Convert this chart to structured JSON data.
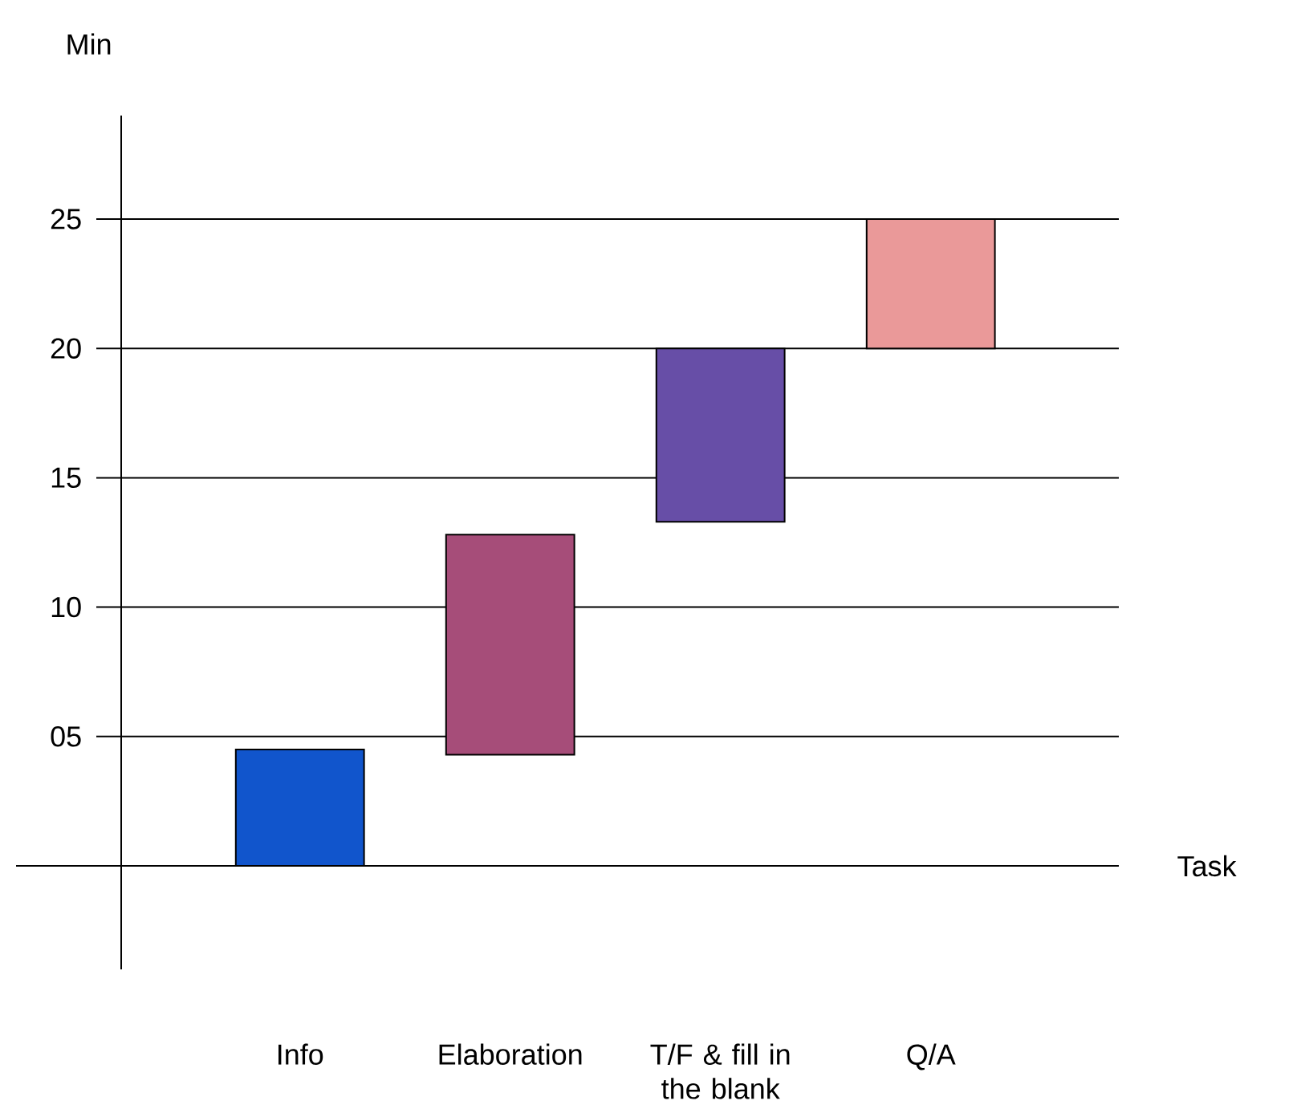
{
  "chart_data": {
    "type": "bar",
    "xlabel": "Task",
    "ylabel": "Min",
    "categories": [
      "Info",
      "Elaboration",
      "T/F & fill in the blank",
      "Q/A"
    ],
    "base": [
      0,
      4.3,
      13.3,
      20
    ],
    "values": [
      4.5,
      8.5,
      6.7,
      5
    ],
    "colors": [
      "#1155cc",
      "#a64d79",
      "#674ea7",
      "#ea9999"
    ],
    "ylim": [
      -4,
      29
    ],
    "yticks": [
      {
        "value": 5,
        "label": "05"
      },
      10,
      15,
      20,
      25
    ],
    "grid": "y"
  }
}
